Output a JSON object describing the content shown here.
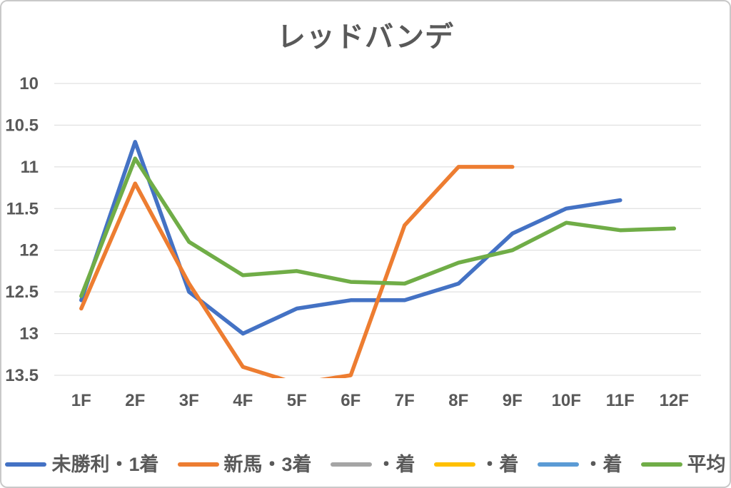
{
  "title": "レッドバンデ",
  "text_color": "#595959",
  "gridline_color": "#D9D9D9",
  "chart_data": {
    "type": "line",
    "title": "レッドバンデ",
    "xlabel": "",
    "ylabel": "",
    "grid": true,
    "legend_position": "bottom",
    "categories": [
      "1F",
      "2F",
      "3F",
      "4F",
      "5F",
      "6F",
      "7F",
      "8F",
      "9F",
      "10F",
      "11F",
      "12F"
    ],
    "y_axis": {
      "min": 10,
      "max": 13.5,
      "step": 0.5,
      "inverted": true,
      "tick_labels": [
        "10",
        "10.5",
        "11",
        "11.5",
        "12",
        "12.5",
        "13",
        "13.5"
      ]
    },
    "series": [
      {
        "name": "未勝利・1着",
        "color": "#4472C4",
        "values": [
          12.6,
          10.7,
          12.5,
          13.0,
          12.7,
          12.6,
          12.6,
          12.4,
          11.8,
          11.5,
          11.4,
          null
        ]
      },
      {
        "name": "新馬・3着",
        "color": "#ED7D31",
        "values": [
          12.7,
          11.2,
          12.4,
          13.4,
          13.6,
          13.5,
          11.7,
          11.0,
          11.0,
          null,
          null,
          null
        ]
      },
      {
        "name": "・着",
        "color": "#A5A5A5",
        "values": []
      },
      {
        "name": "・着",
        "color": "#FFC000",
        "values": []
      },
      {
        "name": "・着",
        "color": "#5B9BD5",
        "values": []
      },
      {
        "name": "平均",
        "color": "#70AD47",
        "values": [
          12.55,
          10.9,
          11.9,
          12.3,
          12.25,
          12.38,
          12.4,
          12.15,
          12.0,
          11.67,
          11.76,
          11.74
        ]
      }
    ]
  }
}
